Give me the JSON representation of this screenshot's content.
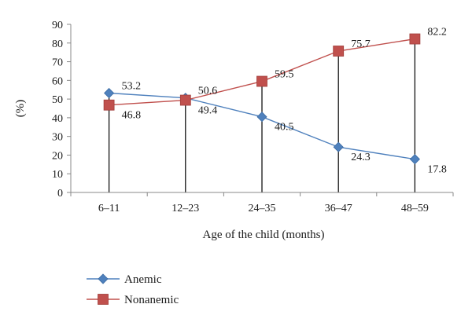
{
  "chart_data": {
    "type": "line",
    "xlabel": "Age of the child (months)",
    "ylabel": "(%)",
    "categories": [
      "6–11",
      "12–23",
      "24–35",
      "36–47",
      "48–59"
    ],
    "ylim": [
      0,
      90
    ],
    "yticks": [
      0,
      10,
      20,
      30,
      40,
      50,
      60,
      70,
      80,
      90
    ],
    "grid": false,
    "drop_lines": true,
    "legend_position": "bottom-left",
    "series": [
      {
        "name": "Anemic",
        "values": [
          53.2,
          50.6,
          40.5,
          24.3,
          17.8
        ],
        "labels": [
          "53.2",
          "50.6",
          "40.5",
          "24.3",
          "17.8"
        ],
        "color": "#4F81BD",
        "marker": "diamond"
      },
      {
        "name": "Nonanemic",
        "values": [
          46.8,
          49.4,
          59.5,
          75.7,
          82.2
        ],
        "labels": [
          "46.8",
          "49.4",
          "59.5",
          "75.7",
          "82.2"
        ],
        "color": "#C0504D",
        "marker": "square"
      }
    ]
  }
}
